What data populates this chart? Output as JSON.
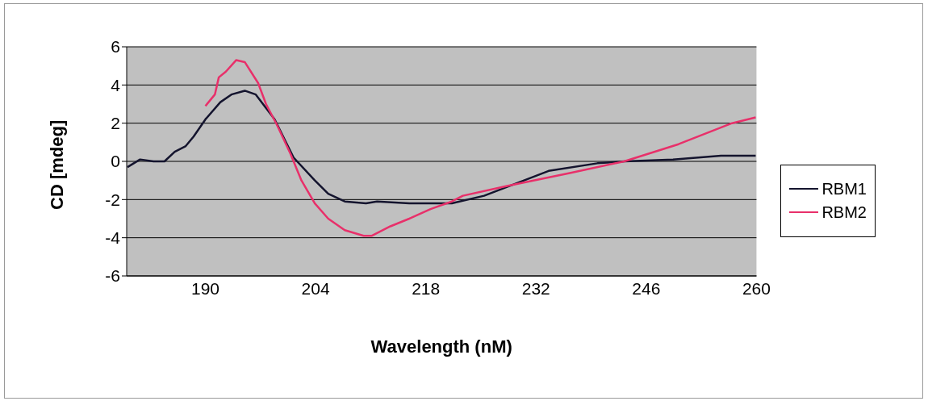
{
  "chart_data": {
    "type": "line",
    "xlabel": "Wavelength (nM)",
    "ylabel": "CD [mdeg]",
    "xlim": [
      180,
      260
    ],
    "xticks": [
      190,
      204,
      218,
      232,
      246,
      260
    ],
    "ylim": [
      -6,
      6
    ],
    "yticks": [
      -6,
      -4,
      -2,
      0,
      2,
      4,
      6
    ],
    "grid": "y",
    "legend": "right",
    "marker": "none",
    "line_style": "solid",
    "series": [
      {
        "name": "RBM1",
        "color": "#14142e",
        "x": [
          180.1,
          181.7,
          183.4,
          184.8,
          186.1,
          187.5,
          188.5,
          190.0,
          191.9,
          193.3,
          195.0,
          196.4,
          198.8,
          201.2,
          203.9,
          205.6,
          207.7,
          210.4,
          211.8,
          215.9,
          219.3,
          221.3,
          225.4,
          229.2,
          233.6,
          239.8,
          243.2,
          249.4,
          255.5,
          259.9
        ],
        "values": [
          -0.3,
          0.1,
          0.0,
          0.0,
          0.5,
          0.8,
          1.3,
          2.2,
          3.1,
          3.5,
          3.7,
          3.5,
          2.2,
          0.2,
          -1.0,
          -1.7,
          -2.1,
          -2.2,
          -2.1,
          -2.2,
          -2.2,
          -2.2,
          -1.8,
          -1.2,
          -0.5,
          -0.1,
          0.0,
          0.1,
          0.3,
          0.3
        ]
      },
      {
        "name": "RBM2",
        "color": "#e8306a",
        "x": [
          190.0,
          191.2,
          191.7,
          192.6,
          193.9,
          195.0,
          196.7,
          197.7,
          199.1,
          200.8,
          202.2,
          203.9,
          205.6,
          207.7,
          210.1,
          211.1,
          213.5,
          215.9,
          218.6,
          221.3,
          222.7,
          228.2,
          236.4,
          243.2,
          250.1,
          256.9,
          259.9
        ],
        "values": [
          2.9,
          3.5,
          4.4,
          4.7,
          5.3,
          5.2,
          4.1,
          3.0,
          1.9,
          0.4,
          -1.0,
          -2.2,
          -3.0,
          -3.6,
          -3.9,
          -3.9,
          -3.4,
          -3.0,
          -2.5,
          -2.1,
          -1.8,
          -1.3,
          -0.6,
          0.0,
          0.9,
          2.0,
          2.3
        ]
      }
    ]
  }
}
